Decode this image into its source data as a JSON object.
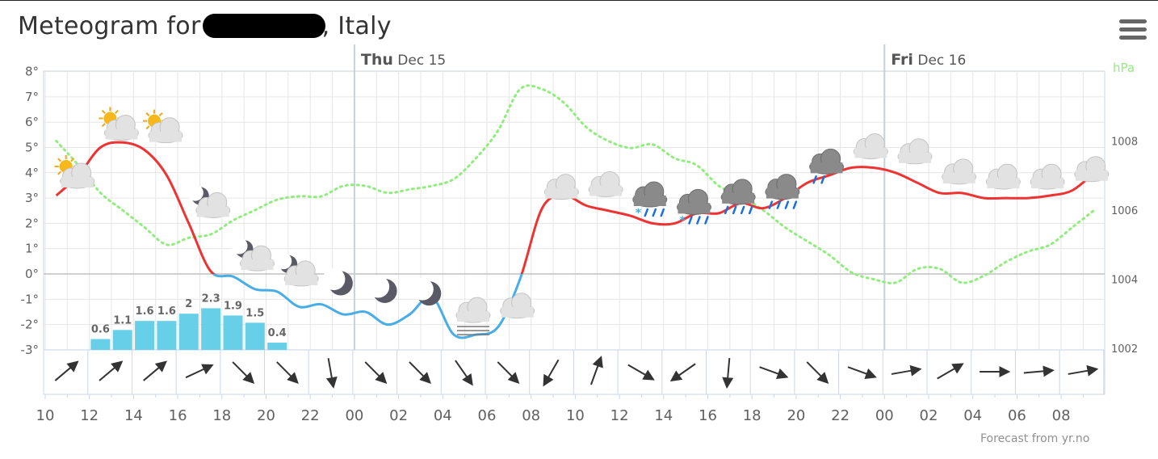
{
  "title": {
    "prefix": "Meteogram for",
    "suffix": ", Italy"
  },
  "menu": {
    "icon": "hamburger-menu-icon"
  },
  "credit": "Forecast from yr.no",
  "colors": {
    "temperature_above_zero": "#ee3333",
    "temperature_below_zero": "#48ade6",
    "pressure": "#90ed7d",
    "precipitation": "#68cfe8",
    "wind_arrow": "#333333",
    "grid": "#e6e6e6"
  },
  "chart_data": {
    "type": "line",
    "x_start_hour": 10,
    "x_tick_labels": [
      "10",
      "12",
      "14",
      "16",
      "18",
      "20",
      "22",
      "00",
      "02",
      "04",
      "06",
      "08",
      "10",
      "12",
      "14",
      "16",
      "18",
      "20",
      "22",
      "00",
      "02",
      "04",
      "06",
      "08"
    ],
    "day_labels": [
      {
        "day": "Thu",
        "date": "Dec 15"
      },
      {
        "day": "Fri",
        "date": "Dec 16"
      }
    ],
    "y_left": {
      "unit": "°C",
      "ylim": [
        -3,
        8
      ],
      "tick_labels": [
        "8°",
        "7°",
        "6°",
        "5°",
        "4°",
        "3°",
        "2°",
        "1°",
        "0°",
        "-1°",
        "-2°",
        "-3°"
      ]
    },
    "y_right": {
      "unit_label": "hPa",
      "ylim": [
        1002,
        1010
      ],
      "tick_labels": [
        "1008",
        "1006",
        "1004",
        "1002"
      ]
    },
    "series": [
      {
        "name": "Temperature",
        "unit": "°C",
        "hours": [
          10.5,
          11.5,
          12.5,
          13.5,
          14.5,
          15.5,
          16.5,
          17.5,
          18.5,
          19.5,
          20.5,
          21.5,
          22.5,
          23.5,
          24.5,
          25.5,
          26.5,
          27.5,
          28.5,
          29.5,
          30.5,
          31.5,
          32.5,
          33.5,
          34.5,
          35.5,
          36.5,
          37.5,
          38.5,
          39.5,
          40.5,
          41.5,
          42.5,
          43.5,
          44.5,
          45.5,
          46.5,
          47.5,
          48.5,
          49.5,
          50.5,
          51.5,
          52.5,
          53.5,
          54.5,
          55.5,
          56.5,
          57.5
        ],
        "values": [
          3.1,
          3.9,
          5.0,
          5.2,
          4.9,
          3.9,
          2.0,
          0.1,
          -0.1,
          -0.6,
          -0.7,
          -1.3,
          -1.2,
          -1.6,
          -1.5,
          -2.0,
          -1.6,
          -0.9,
          -2.4,
          -2.4,
          -2.1,
          -0.2,
          2.6,
          3.1,
          2.7,
          2.5,
          2.3,
          2.0,
          2.0,
          2.4,
          2.4,
          2.8,
          2.6,
          3.0,
          3.6,
          3.9,
          4.2,
          4.2,
          4.0,
          3.6,
          3.2,
          3.2,
          3.0,
          3.0,
          3.0,
          3.1,
          3.3,
          4.0
        ]
      },
      {
        "name": "Air pressure",
        "unit": "hPa",
        "hours": [
          10.5,
          11.5,
          12.5,
          13.5,
          14.5,
          15.5,
          16.5,
          17.5,
          18.5,
          19.5,
          20.5,
          21.5,
          22.5,
          23.5,
          24.5,
          25.5,
          26.5,
          27.5,
          28.5,
          29.5,
          30.5,
          31.5,
          32.5,
          33.5,
          34.5,
          35.5,
          36.5,
          37.5,
          38.5,
          39.5,
          40.5,
          41.5,
          42.5,
          43.5,
          44.5,
          45.5,
          46.5,
          47.5,
          48.5,
          49.5,
          50.5,
          51.5,
          52.5,
          53.5,
          54.5,
          55.5,
          56.5,
          57.5
        ],
        "values": [
          1008.0,
          1007.3,
          1006.5,
          1006.0,
          1005.5,
          1005.0,
          1005.2,
          1005.3,
          1005.7,
          1006.0,
          1006.3,
          1006.4,
          1006.4,
          1006.7,
          1006.7,
          1006.5,
          1006.6,
          1006.7,
          1006.9,
          1007.5,
          1008.3,
          1009.5,
          1009.5,
          1009.1,
          1008.4,
          1008.0,
          1007.8,
          1007.9,
          1007.5,
          1007.3,
          1006.7,
          1006.4,
          1006.0,
          1005.5,
          1005.1,
          1004.7,
          1004.2,
          1004.0,
          1003.9,
          1004.3,
          1004.3,
          1003.9,
          1004.1,
          1004.5,
          1004.8,
          1005.0,
          1005.5,
          1006.0
        ]
      },
      {
        "name": "Precipitation",
        "unit": "mm",
        "hours": [
          12.5,
          13.5,
          14.5,
          15.5,
          16.5,
          17.5,
          18.5,
          19.5,
          20.5
        ],
        "values": [
          0.6,
          1.1,
          1.6,
          1.6,
          2,
          2.3,
          1.9,
          1.5,
          0.4
        ],
        "labels": [
          "0.6",
          "1.1",
          "1.6",
          "1.6",
          "2",
          "2.3",
          "1.9",
          "1.5",
          "0.4"
        ]
      }
    ],
    "weather_symbols": [
      {
        "hour": 10.5,
        "icon": "partly-cloudy-day-icon",
        "temp": 3.1
      },
      {
        "hour": 12.5,
        "icon": "partly-cloudy-day-icon",
        "temp": 5.0
      },
      {
        "hour": 14.5,
        "icon": "partly-cloudy-day-icon",
        "temp": 4.9
      },
      {
        "hour": 16.5,
        "icon": "partly-cloudy-night-icon",
        "temp": 2.0
      },
      {
        "hour": 18.5,
        "icon": "partly-cloudy-night-icon",
        "temp": -0.1
      },
      {
        "hour": 20.5,
        "icon": "partly-cloudy-night-icon",
        "temp": -0.7
      },
      {
        "hour": 22.5,
        "icon": "clear-night-icon",
        "temp": -1.2
      },
      {
        "hour": 24.5,
        "icon": "clear-night-icon",
        "temp": -1.5
      },
      {
        "hour": 26.5,
        "icon": "clear-night-icon",
        "temp": -1.6
      },
      {
        "hour": 28.5,
        "icon": "fog-icon",
        "temp": -2.4
      },
      {
        "hour": 30.5,
        "icon": "cloudy-icon",
        "temp": -2.1
      },
      {
        "hour": 32.5,
        "icon": "cloudy-icon",
        "temp": 2.6
      },
      {
        "hour": 34.5,
        "icon": "cloudy-icon",
        "temp": 2.7
      },
      {
        "hour": 36.5,
        "icon": "sleet-icon",
        "temp": 2.3
      },
      {
        "hour": 38.5,
        "icon": "sleet-icon",
        "temp": 2.0
      },
      {
        "hour": 40.5,
        "icon": "rain-icon",
        "temp": 2.4
      },
      {
        "hour": 42.5,
        "icon": "rain-icon",
        "temp": 2.6
      },
      {
        "hour": 44.5,
        "icon": "light-rain-icon",
        "temp": 3.6
      },
      {
        "hour": 46.5,
        "icon": "cloudy-icon",
        "temp": 4.2
      },
      {
        "hour": 48.5,
        "icon": "cloudy-icon",
        "temp": 4.0
      },
      {
        "hour": 50.5,
        "icon": "cloudy-icon",
        "temp": 3.2
      },
      {
        "hour": 52.5,
        "icon": "cloudy-icon",
        "temp": 3.0
      },
      {
        "hour": 54.5,
        "icon": "cloudy-icon",
        "temp": 3.0
      },
      {
        "hour": 56.5,
        "icon": "cloudy-icon",
        "temp": 3.3
      }
    ],
    "wind_directions_deg": [
      50,
      50,
      50,
      65,
      135,
      135,
      170,
      135,
      135,
      145,
      135,
      210,
      20,
      120,
      235,
      185,
      110,
      135,
      110,
      80,
      60,
      90,
      85,
      80
    ],
    "grid": true,
    "legend": "none"
  }
}
